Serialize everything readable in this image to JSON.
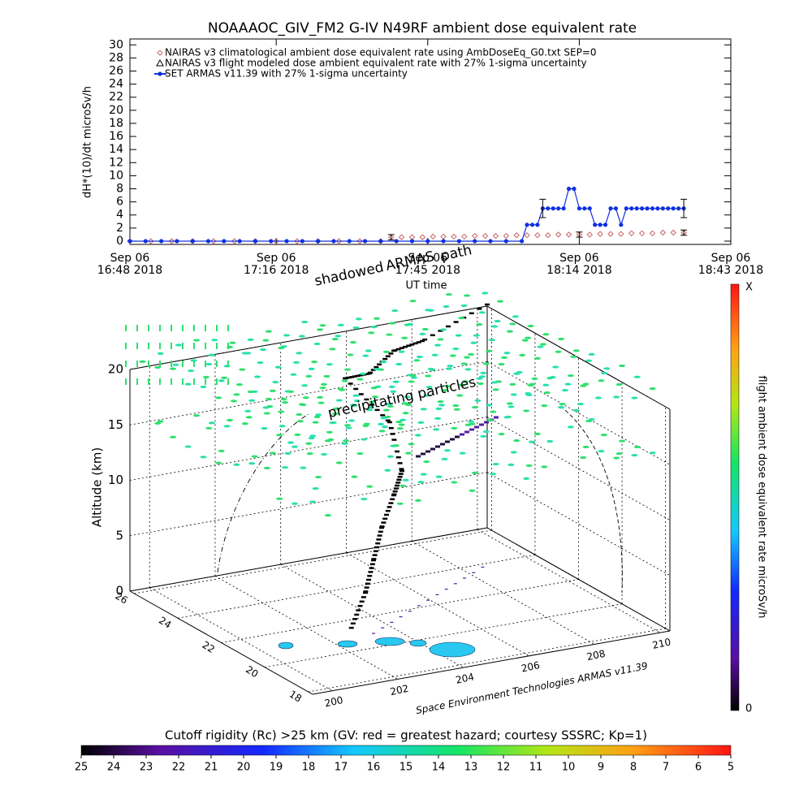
{
  "chart_data": {
    "type": "line",
    "title": "NOAAAOC_GIV_FM2 G-IV    N49RF  ambient dose equivalent rate",
    "ylabel": "dH*(10)/dt microSv/h",
    "xlabel": "UT time",
    "xlim": [
      1008,
      1123
    ],
    "xticks": [
      {
        "value": 1008,
        "label": [
          "Sep 06",
          "16:48 2018"
        ]
      },
      {
        "value": 1036,
        "label": [
          "Sep 06",
          "17:16 2018"
        ]
      },
      {
        "value": 1065,
        "label": [
          "Sep 06",
          "17:45 2018"
        ]
      },
      {
        "value": 1094,
        "label": [
          "Sep 06",
          "18:14 2018"
        ]
      },
      {
        "value": 1123,
        "label": [
          "Sep 06",
          "18:43 2018"
        ]
      }
    ],
    "ylim": [
      -0.5,
      30.9
    ],
    "yticks": [
      0,
      2,
      4,
      6,
      8,
      10,
      12,
      14,
      16,
      18,
      20,
      22,
      24,
      26,
      28,
      30
    ],
    "series": [
      {
        "name": "NAIRAS v3 climatological ambient dose equivalent rate using AmbDoseEq_G0.txt SEP=0",
        "color": "#c86464",
        "marker": "diamond",
        "line": false,
        "x": [
          1008,
          1012,
          1016,
          1020,
          1024,
          1028,
          1032,
          1036,
          1040,
          1044,
          1048,
          1052,
          1056,
          1058,
          1060,
          1062,
          1064,
          1066,
          1068,
          1070,
          1072,
          1074,
          1076,
          1078,
          1080,
          1082,
          1084,
          1086,
          1088,
          1090,
          1092,
          1094,
          1096,
          1098,
          1100,
          1102,
          1104,
          1106,
          1108,
          1110,
          1112,
          1114
        ],
        "values": [
          0,
          0,
          0,
          0,
          0,
          0,
          0,
          0,
          0,
          0,
          0,
          0,
          0,
          0.6,
          0.6,
          0.6,
          0.6,
          0.7,
          0.7,
          0.7,
          0.7,
          0.8,
          0.8,
          0.8,
          0.8,
          0.9,
          0.9,
          0.9,
          0.9,
          1.0,
          1.0,
          1.0,
          1.0,
          1.1,
          1.1,
          1.1,
          1.2,
          1.2,
          1.2,
          1.3,
          1.3,
          1.3
        ],
        "error_bars": [
          {
            "x": 1058,
            "value": 0.6,
            "error": 0.4
          },
          {
            "x": 1094,
            "value": 1.0,
            "error": 0.4
          },
          {
            "x": 1114,
            "value": 1.3,
            "error": 0.4
          }
        ]
      },
      {
        "name": "NAIRAS v3 flight modeled dose ambient equivalent rate with 27% 1-sigma uncertainty",
        "color": "#000000",
        "marker": "triangle",
        "line": false,
        "x": [],
        "values": []
      },
      {
        "name": "SET ARMAS v11.39 with 27% 1-sigma uncertainty",
        "color": "#1030e0",
        "marker": "circle",
        "line": true,
        "x": [
          1008,
          1011,
          1014,
          1017,
          1020,
          1023,
          1026,
          1029,
          1032,
          1035,
          1038,
          1041,
          1044,
          1047,
          1050,
          1053,
          1056,
          1059,
          1062,
          1065,
          1068,
          1071,
          1074,
          1077,
          1080,
          1083,
          1084,
          1085,
          1086,
          1087,
          1088,
          1089,
          1090,
          1091,
          1092,
          1093,
          1094,
          1095,
          1096,
          1097,
          1098,
          1099,
          1100,
          1101,
          1102,
          1103,
          1104,
          1105,
          1106,
          1107,
          1108,
          1109,
          1110,
          1111,
          1112,
          1113,
          1114
        ],
        "values": [
          0,
          0,
          0,
          0,
          0,
          0,
          0,
          0,
          0,
          0,
          0,
          0,
          0,
          0,
          0,
          0,
          0,
          0,
          0,
          0,
          0,
          0,
          0,
          0,
          0,
          0,
          2.5,
          2.5,
          2.5,
          5,
          5,
          5,
          5,
          5,
          8,
          8,
          5,
          5,
          5,
          2.5,
          2.5,
          2.5,
          5,
          5,
          2.5,
          5,
          5,
          5,
          5,
          5,
          5,
          5,
          5,
          5,
          5,
          5,
          5
        ],
        "error_bars": [
          {
            "x": 1087,
            "value": 5,
            "error": 1.4
          },
          {
            "x": 1114,
            "value": 5,
            "error": 1.4
          }
        ]
      }
    ]
  },
  "scene": {
    "zlabel": "Altitude (km)",
    "zlim": [
      0,
      20
    ],
    "zticks": [
      0,
      5,
      10,
      15,
      20
    ],
    "lonlim": [
      199.4,
      210.3
    ],
    "lonticks": [
      200,
      202,
      204,
      206,
      208,
      210
    ],
    "latlim": [
      26.2,
      17.8
    ],
    "latticks": [
      26,
      24,
      22,
      20,
      18
    ],
    "credit": "Space Environment Technologies ARMAS v11.39",
    "annotations": [
      "shadowed",
      "ARMAS",
      "path",
      "precipitating particles"
    ]
  },
  "dose_colorbar": {
    "label": "flight ambient dose equivalent rate microSv/h",
    "max_label": "X",
    "min_label": "0"
  },
  "rigidity_colorbar": {
    "label": "Cutoff rigidity (Rc) >25 km (GV: red = greatest hazard; courtesy SSSRC; Kp=1)",
    "lim": [
      25,
      5
    ],
    "ticks": [
      25,
      24,
      23,
      22,
      21,
      20,
      19,
      18,
      17,
      16,
      15,
      14,
      13,
      12,
      11,
      10,
      9,
      8,
      7,
      6,
      5
    ]
  }
}
